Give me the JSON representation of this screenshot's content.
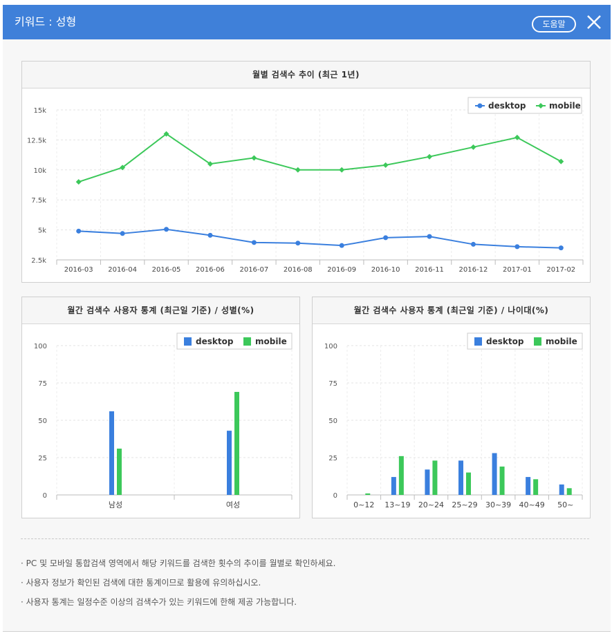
{
  "window": {
    "title": "키워드 : 성형",
    "help_label": "도움말",
    "accent": "#3f80d9"
  },
  "colors": {
    "desktop": "#3a7fde",
    "mobile": "#3cc85a"
  },
  "icons": {
    "close": "close-icon",
    "legend_line": "legend-line-marker",
    "legend_square": "legend-square-marker"
  },
  "legend": {
    "desktop": "desktop",
    "mobile": "mobile"
  },
  "chart_data": [
    {
      "type": "line",
      "title": "월별 검색수 추이 (최근 1년)",
      "x": [
        "2016-03",
        "2016-04",
        "2016-05",
        "2016-06",
        "2016-07",
        "2016-08",
        "2016-09",
        "2016-10",
        "2016-11",
        "2016-12",
        "2017-01",
        "2017-02"
      ],
      "series": [
        {
          "name": "desktop",
          "values": [
            4900,
            4700,
            5050,
            4550,
            3950,
            3900,
            3700,
            4350,
            4450,
            3800,
            3600,
            3500
          ]
        },
        {
          "name": "mobile",
          "values": [
            9000,
            10200,
            13000,
            10500,
            11000,
            10000,
            10000,
            10400,
            11100,
            11900,
            12700,
            10700
          ]
        }
      ],
      "ylim": [
        2500,
        15000
      ],
      "yticks": [
        2500,
        5000,
        7500,
        10000,
        12500,
        15000
      ],
      "ytick_labels": [
        "2.5k",
        "5k",
        "7.5k",
        "10k",
        "12.5k",
        "15k"
      ],
      "grid": true,
      "legend_position": "top-right"
    },
    {
      "type": "bar",
      "title": "월간 검색수 사용자 통계 (최근일 기준) / 성별(%)",
      "categories": [
        "남성",
        "여성"
      ],
      "series": [
        {
          "name": "desktop",
          "values": [
            56,
            43
          ]
        },
        {
          "name": "mobile",
          "values": [
            31,
            69
          ]
        }
      ],
      "ylim": [
        0,
        100
      ],
      "yticks": [
        0,
        25,
        50,
        75,
        100
      ],
      "grid": true,
      "legend_position": "top-right"
    },
    {
      "type": "bar",
      "title": "월간 검색수 사용자 통계 (최근일 기준) / 나이대(%)",
      "categories": [
        "0~12",
        "13~19",
        "20~24",
        "25~29",
        "30~39",
        "40~49",
        "50~"
      ],
      "series": [
        {
          "name": "desktop",
          "values": [
            0,
            12,
            17,
            23,
            28,
            12,
            7
          ]
        },
        {
          "name": "mobile",
          "values": [
            1,
            26,
            23,
            15,
            19,
            10.5,
            4.5
          ]
        }
      ],
      "ylim": [
        0,
        100
      ],
      "yticks": [
        0,
        25,
        50,
        75,
        100
      ],
      "grid": true,
      "legend_position": "top-right"
    }
  ],
  "notes": [
    "PC 및 모바일 통합검색 영역에서 해당 키워드를 검색한 횟수의 추이를 월별로 확인하세요.",
    "사용자 정보가 확인된 검색에 대한 통계이므로 활용에 유의하십시오.",
    "사용자 통계는 일정수준 이상의 검색수가 있는 키워드에 한해 제공 가능합니다."
  ]
}
